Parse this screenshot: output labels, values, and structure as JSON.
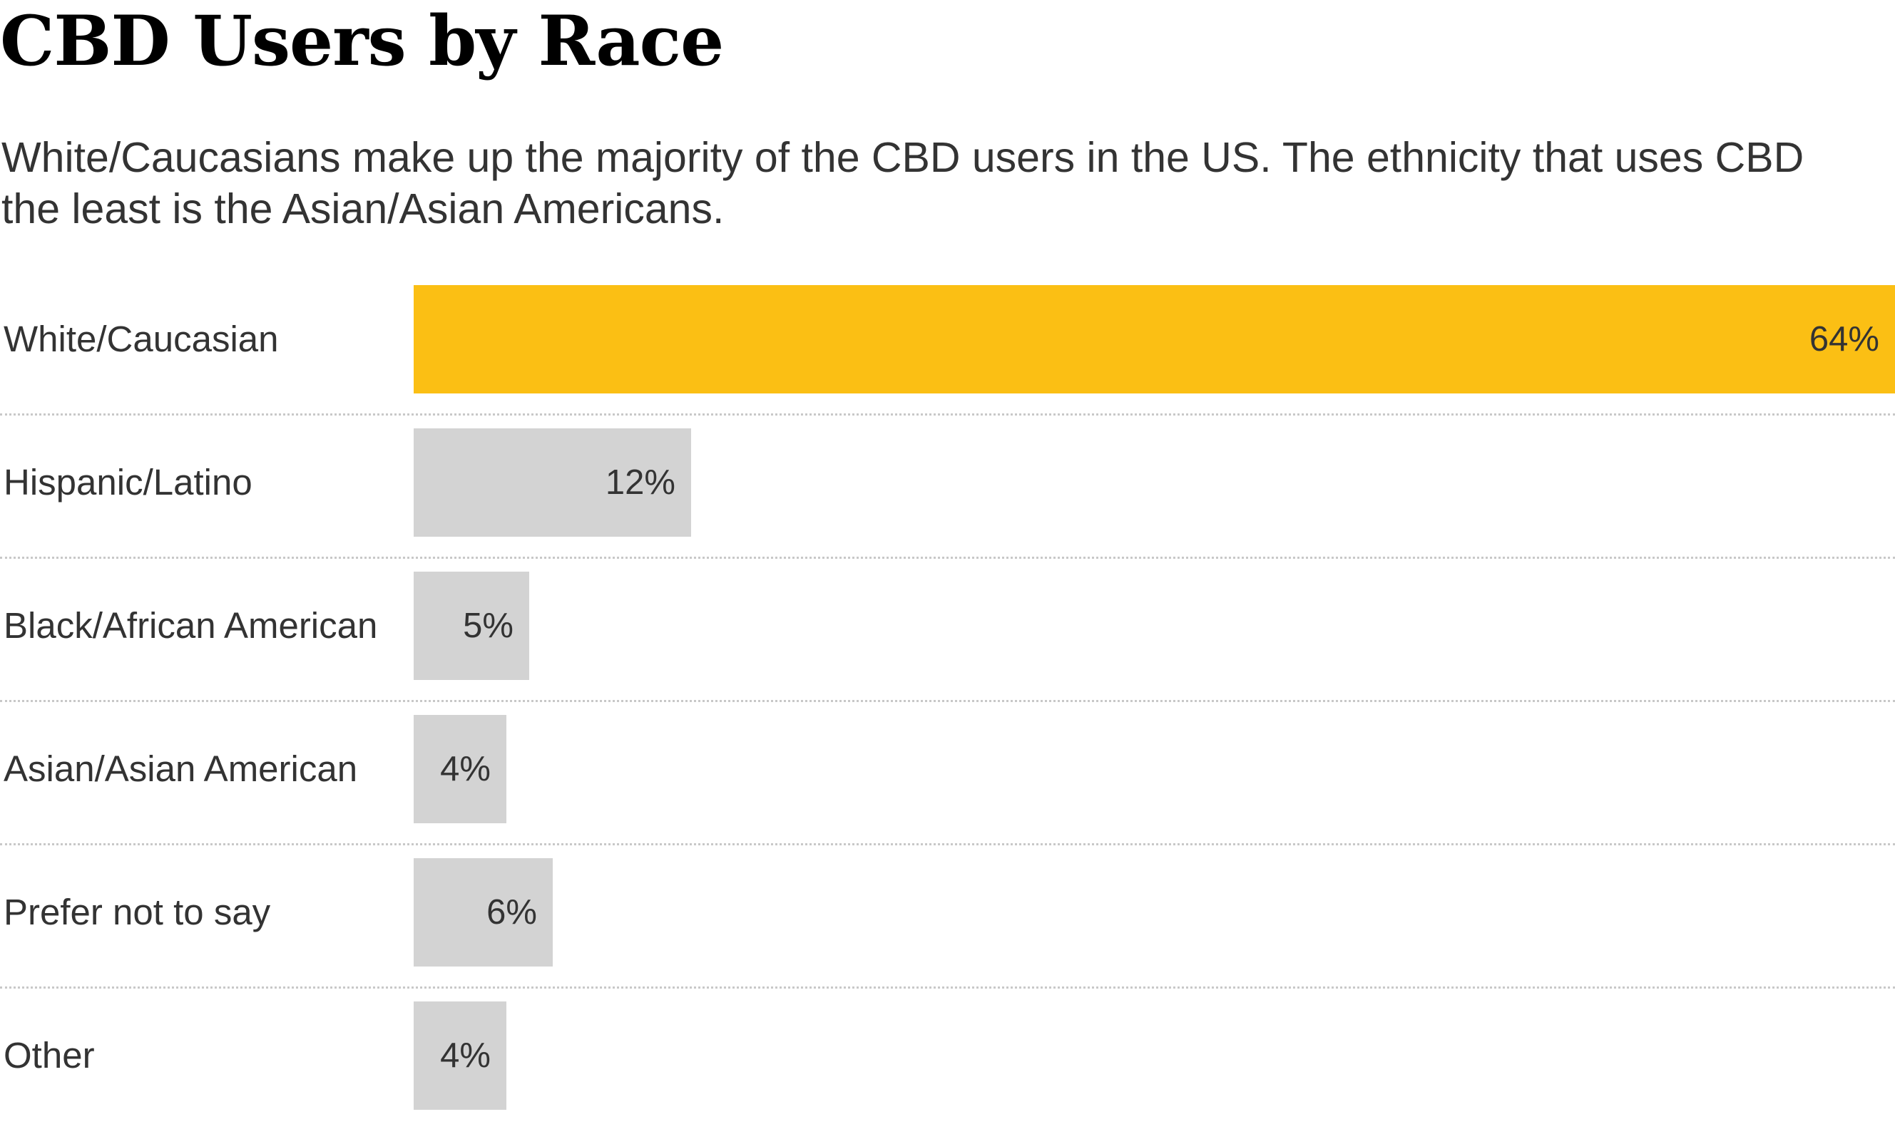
{
  "title": "CBD Users by Race",
  "subtitle": "White/Caucasians make up the majority of the CBD users in the US. The ethnicity that uses CBD the least is the Asian/Asian Americans.",
  "colors": {
    "highlight": "#fbbf14",
    "default_bar": "#d3d3d3",
    "divider": "#c8c8c8",
    "text": "#333333",
    "title": "#000000"
  },
  "chart_data": {
    "type": "bar",
    "orientation": "horizontal",
    "title": "CBD Users by Race",
    "subtitle": "White/Caucasians make up the majority of the CBD users in the US. The ethnicity that uses CBD the least is the Asian/Asian Americans.",
    "categories": [
      "White/Caucasian",
      "Hispanic/Latino",
      "Black/African American",
      "Asian/Asian American",
      "Prefer not to say",
      "Other"
    ],
    "values": [
      64,
      12,
      5,
      4,
      6,
      4
    ],
    "value_labels": [
      "64%",
      "12%",
      "5%",
      "4%",
      "6%",
      "4%"
    ],
    "highlighted_category": "White/Caucasian",
    "xlim": [
      0,
      64
    ],
    "unit": "%",
    "grid": false,
    "legend": "none"
  }
}
